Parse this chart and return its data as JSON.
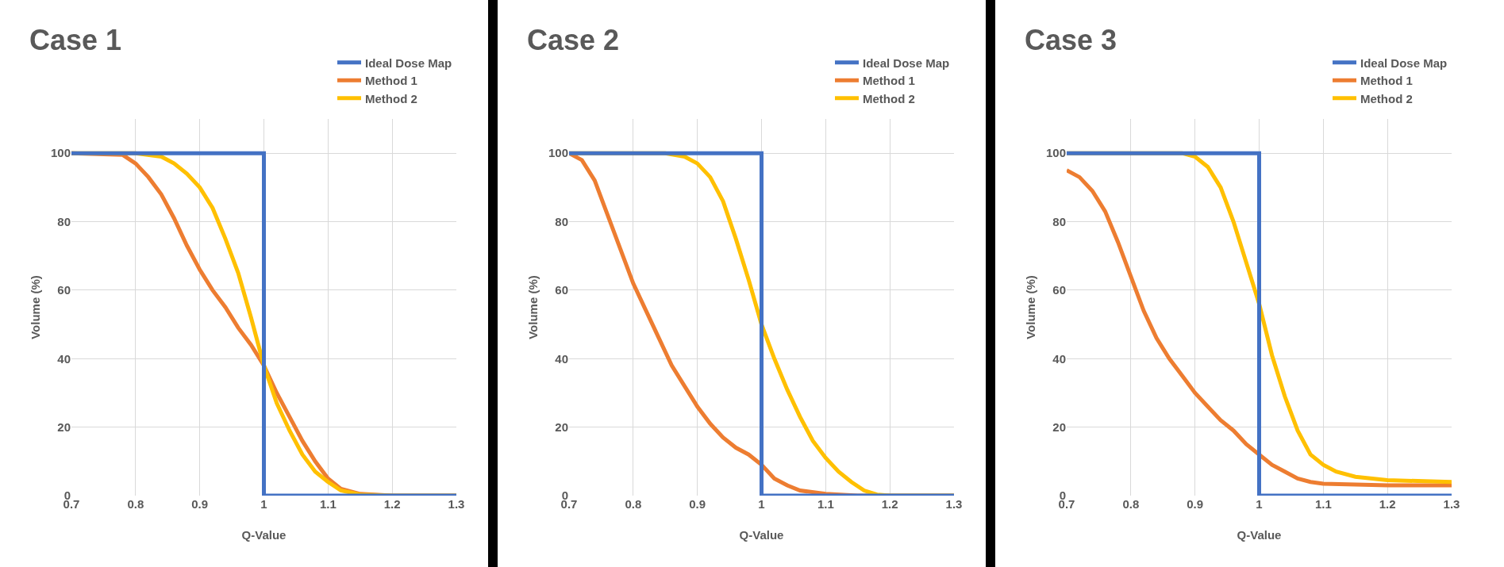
{
  "chart_data": [
    {
      "type": "line",
      "title": "Case 1",
      "xlabel": "Q-Value",
      "ylabel": "Volume (%)",
      "xlim": [
        0.7,
        1.3
      ],
      "xticks": [
        0.7,
        0.8,
        0.9,
        1,
        1.1,
        1.2,
        1.3
      ],
      "ylim": [
        0,
        110
      ],
      "yticks": [
        0,
        20,
        40,
        60,
        80,
        100
      ],
      "grid": true,
      "legend": "top right",
      "series": [
        {
          "name": "Ideal Dose Map",
          "color": "#4472c4",
          "x": [
            0.7,
            1,
            1,
            1.3
          ],
          "values": [
            100,
            100,
            0,
            0
          ]
        },
        {
          "name": "Method 1",
          "color": "#ed7d31",
          "x": [
            0.7,
            0.78,
            0.8,
            0.82,
            0.84,
            0.86,
            0.88,
            0.9,
            0.92,
            0.94,
            0.96,
            0.98,
            1.0,
            1.02,
            1.04,
            1.06,
            1.08,
            1.1,
            1.12,
            1.15,
            1.2,
            1.3
          ],
          "values": [
            100,
            99.5,
            97,
            93,
            88,
            81,
            73,
            66,
            60,
            55,
            49,
            44,
            38,
            30,
            23,
            16,
            10,
            5,
            2,
            0.5,
            0,
            0
          ]
        },
        {
          "name": "Method 2",
          "color": "#ffc000",
          "x": [
            0.7,
            0.8,
            0.84,
            0.86,
            0.88,
            0.9,
            0.92,
            0.94,
            0.96,
            0.98,
            1.0,
            1.02,
            1.04,
            1.06,
            1.08,
            1.1,
            1.12,
            1.15,
            1.2,
            1.3
          ],
          "values": [
            100,
            100,
            99,
            97,
            94,
            90,
            84,
            75,
            65,
            52,
            38,
            27,
            19,
            12,
            7,
            4,
            1.5,
            0.3,
            0,
            0
          ]
        }
      ]
    },
    {
      "type": "line",
      "title": "Case 2",
      "xlabel": "Q-Value",
      "ylabel": "Volume (%)",
      "xlim": [
        0.7,
        1.3
      ],
      "xticks": [
        0.7,
        0.8,
        0.9,
        1,
        1.1,
        1.2,
        1.3
      ],
      "ylim": [
        0,
        110
      ],
      "yticks": [
        0,
        20,
        40,
        60,
        80,
        100
      ],
      "grid": true,
      "legend": "top right",
      "series": [
        {
          "name": "Ideal Dose Map",
          "color": "#4472c4",
          "x": [
            0.7,
            1,
            1,
            1.3
          ],
          "values": [
            100,
            100,
            0,
            0
          ]
        },
        {
          "name": "Method 1",
          "color": "#ed7d31",
          "x": [
            0.7,
            0.72,
            0.74,
            0.76,
            0.78,
            0.8,
            0.82,
            0.84,
            0.86,
            0.88,
            0.9,
            0.92,
            0.94,
            0.96,
            0.98,
            1.0,
            1.02,
            1.04,
            1.06,
            1.1,
            1.15,
            1.3
          ],
          "values": [
            100,
            98,
            92,
            82,
            72,
            62,
            54,
            46,
            38,
            32,
            26,
            21,
            17,
            14,
            12,
            9,
            5,
            3,
            1.5,
            0.5,
            0,
            0
          ]
        },
        {
          "name": "Method 2",
          "color": "#ffc000",
          "x": [
            0.7,
            0.85,
            0.88,
            0.9,
            0.92,
            0.94,
            0.96,
            0.98,
            1.0,
            1.02,
            1.04,
            1.06,
            1.08,
            1.1,
            1.12,
            1.14,
            1.16,
            1.18,
            1.2,
            1.3
          ],
          "values": [
            100,
            100,
            99,
            97,
            93,
            86,
            75,
            63,
            50,
            40,
            31,
            23,
            16,
            11,
            7,
            4,
            1.5,
            0.3,
            0,
            0
          ]
        }
      ]
    },
    {
      "type": "line",
      "title": "Case 3",
      "xlabel": "Q-Value",
      "ylabel": "Volume (%)",
      "xlim": [
        0.7,
        1.3
      ],
      "xticks": [
        0.7,
        0.8,
        0.9,
        1,
        1.1,
        1.2,
        1.3
      ],
      "ylim": [
        0,
        110
      ],
      "yticks": [
        0,
        20,
        40,
        60,
        80,
        100
      ],
      "grid": true,
      "legend": "top right",
      "series": [
        {
          "name": "Ideal Dose Map",
          "color": "#4472c4",
          "x": [
            0.7,
            1,
            1,
            1.3
          ],
          "values": [
            100,
            100,
            0,
            0
          ]
        },
        {
          "name": "Method 1",
          "color": "#ed7d31",
          "x": [
            0.7,
            0.72,
            0.74,
            0.76,
            0.78,
            0.8,
            0.82,
            0.84,
            0.86,
            0.88,
            0.9,
            0.92,
            0.94,
            0.96,
            0.98,
            1.0,
            1.02,
            1.04,
            1.06,
            1.08,
            1.1,
            1.2,
            1.3
          ],
          "values": [
            95,
            93,
            89,
            83,
            74,
            64,
            54,
            46,
            40,
            35,
            30,
            26,
            22,
            19,
            15,
            12,
            9,
            7,
            5,
            4,
            3.5,
            3,
            3
          ]
        },
        {
          "name": "Method 2",
          "color": "#ffc000",
          "x": [
            0.7,
            0.88,
            0.9,
            0.92,
            0.94,
            0.96,
            0.98,
            1.0,
            1.02,
            1.04,
            1.06,
            1.08,
            1.1,
            1.12,
            1.15,
            1.2,
            1.3
          ],
          "values": [
            100,
            100,
            99,
            96,
            90,
            80,
            68,
            56,
            41,
            29,
            19,
            12,
            9,
            7,
            5.5,
            4.5,
            4
          ]
        }
      ]
    }
  ]
}
